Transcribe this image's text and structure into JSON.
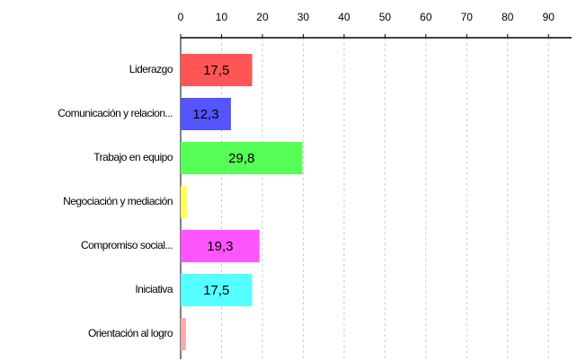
{
  "chart_data": {
    "type": "barh",
    "categories": [
      "Liderazgo",
      "Comunicación y relacion...",
      "Trabajo en equipo",
      "Negociación y mediación",
      "Compromiso social...",
      "Iniciativa",
      "Orientación al logro"
    ],
    "values": [
      17.5,
      12.3,
      29.8,
      1.5,
      19.3,
      17.5,
      1.3
    ],
    "value_labels": [
      "17,5",
      "12,3",
      "29,8",
      null,
      "19,3",
      "17,5",
      null
    ],
    "colors": [
      "#ff5555",
      "#5555ff",
      "#55ff55",
      "#ffff55",
      "#ff55ff",
      "#55ffff",
      "#ffaaaa"
    ],
    "xlim": [
      0,
      95
    ],
    "xticks": [
      0,
      10,
      20,
      30,
      40,
      50,
      60,
      70,
      80,
      90
    ],
    "grid": true
  }
}
